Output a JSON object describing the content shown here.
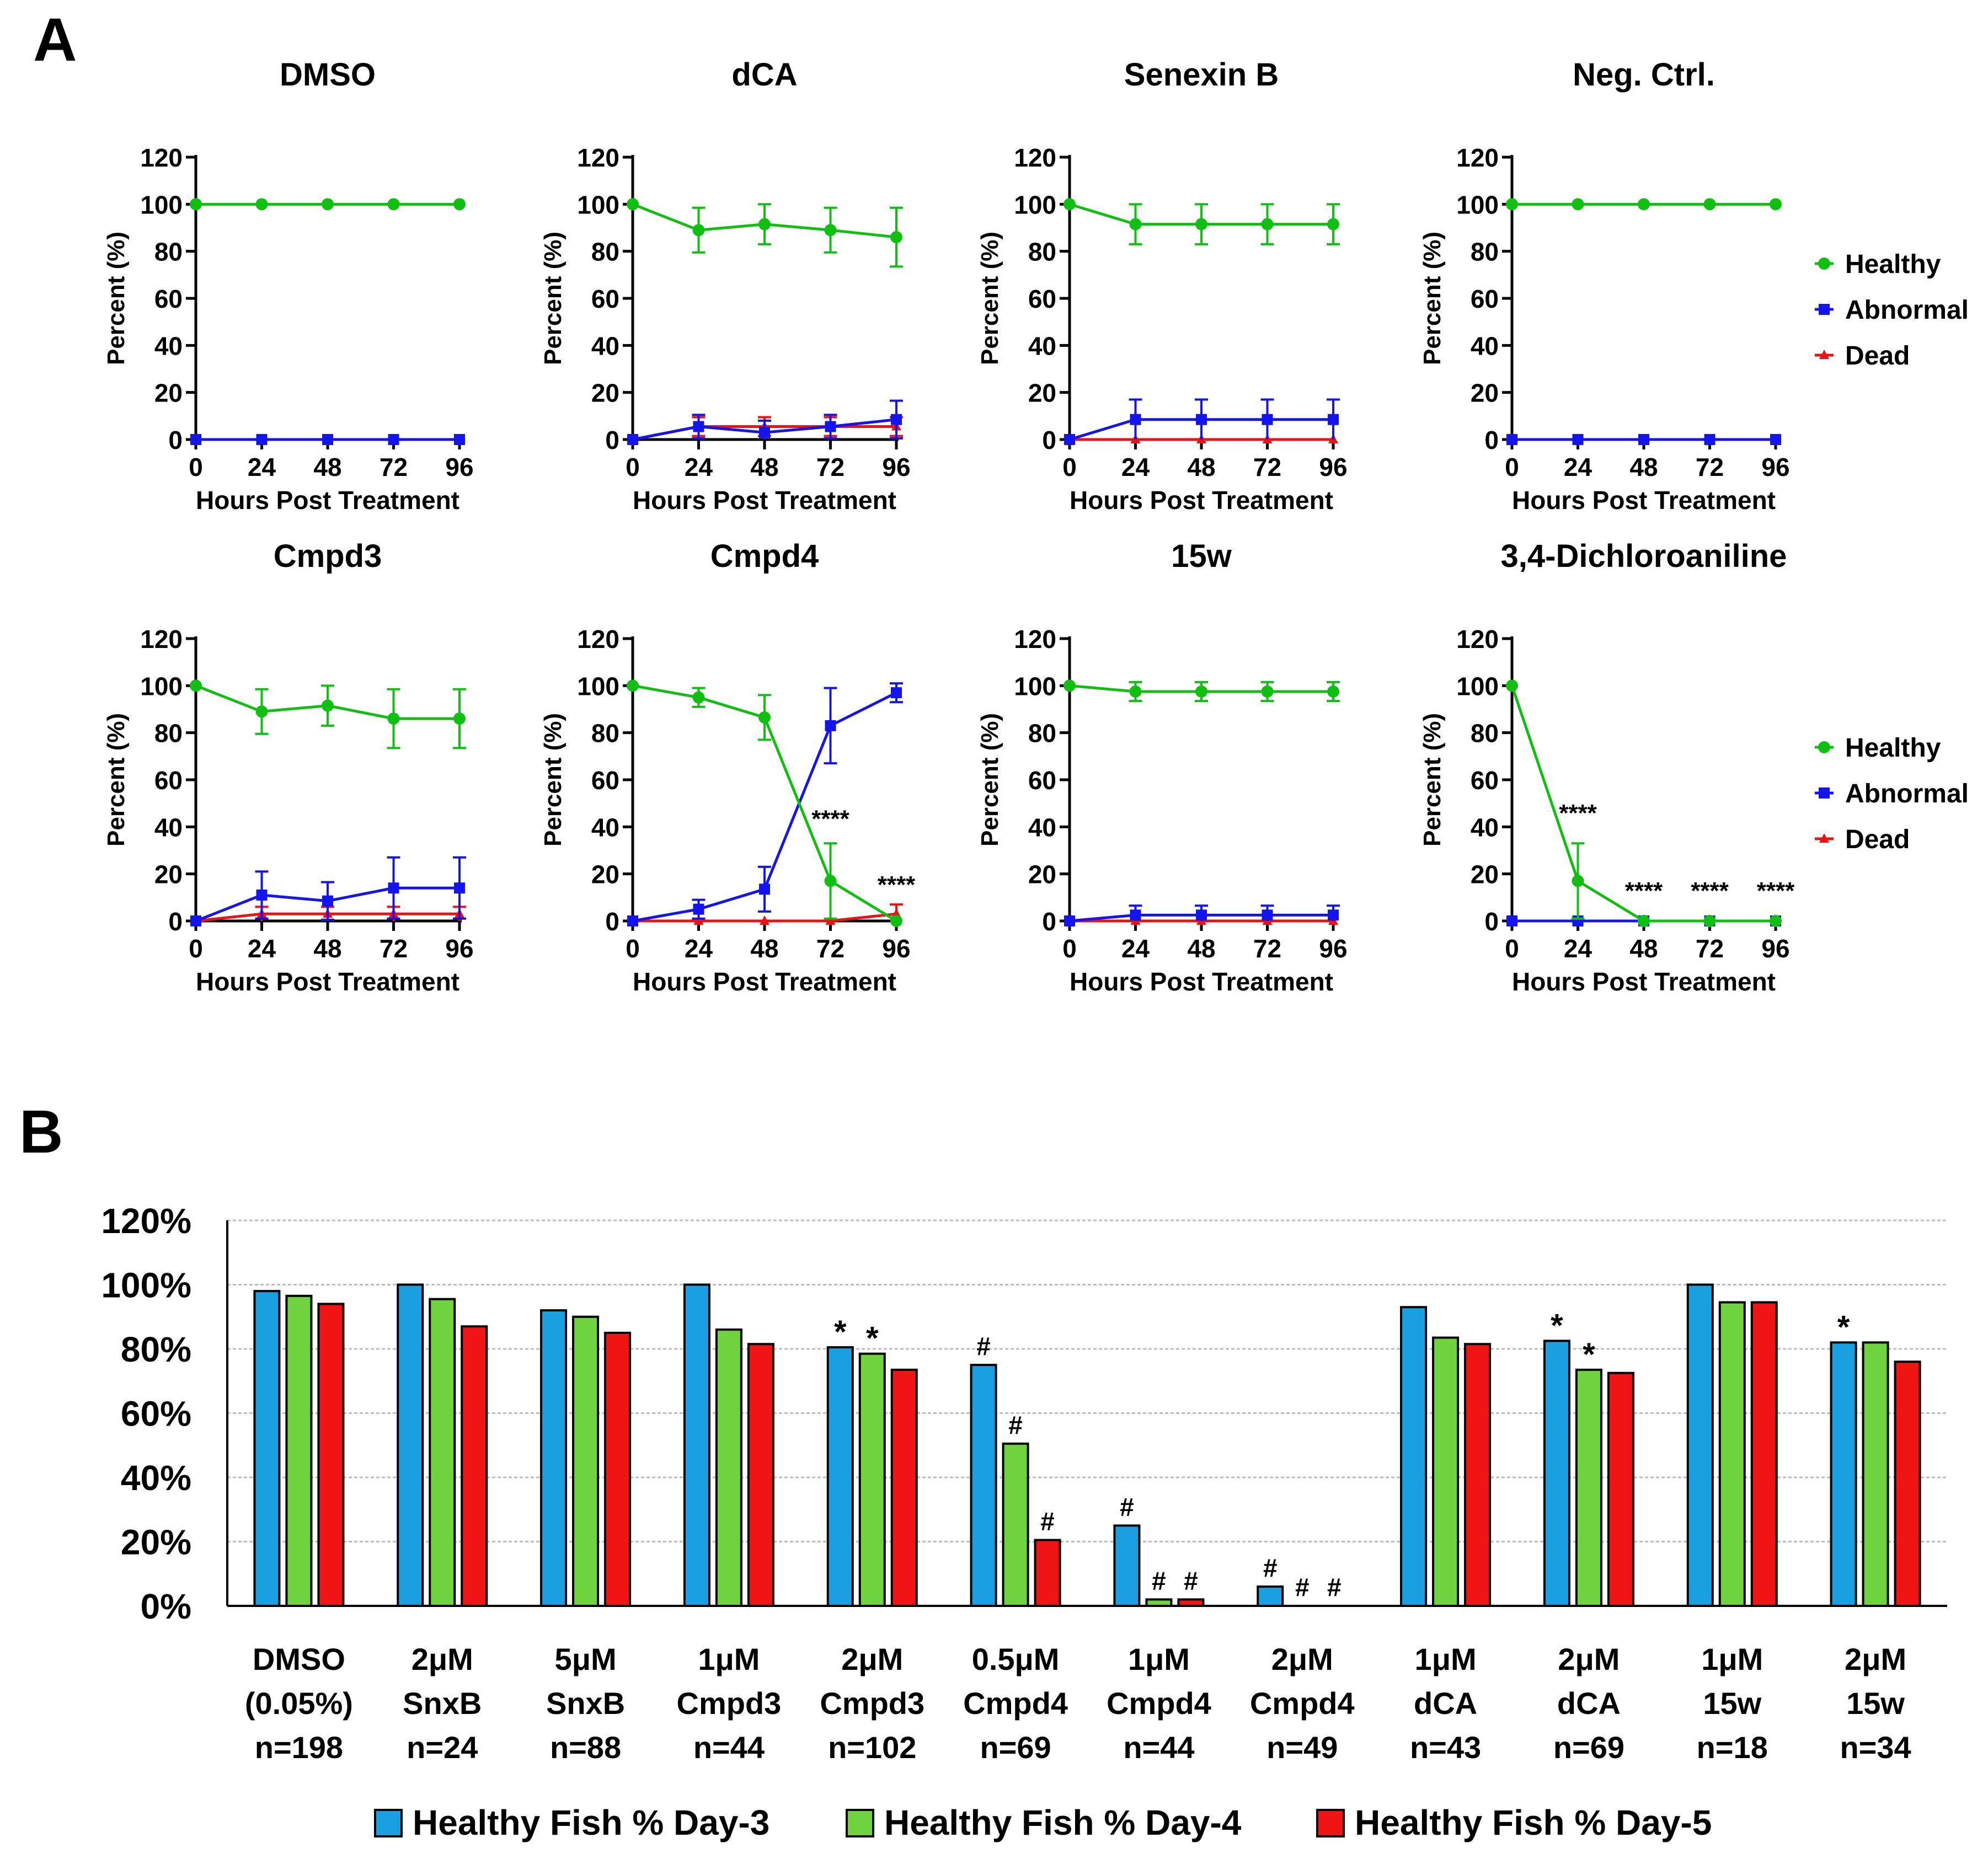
{
  "chart_data": {
    "panel_a": {
      "label": "A",
      "type": "line",
      "xlabel": "Hours Post Treatment",
      "ylabel": "Percent (%)",
      "x": [
        0,
        24,
        48,
        72,
        96
      ],
      "xticks": [
        "0",
        "24",
        "48",
        "72",
        "96"
      ],
      "yticks": [
        "0",
        "20",
        "40",
        "60",
        "80",
        "100",
        "120"
      ],
      "ylim": [
        0,
        120
      ],
      "legend": [
        {
          "name": "Healthy",
          "color": "#10c010",
          "marker": "circle"
        },
        {
          "name": "Abnormal",
          "color": "#1414ef",
          "marker": "square"
        },
        {
          "name": "Dead",
          "color": "#ee1111",
          "marker": "triangle"
        }
      ],
      "subplots": [
        {
          "title": "DMSO",
          "series": [
            {
              "name": "Healthy",
              "values": [
                100,
                100,
                100,
                100,
                100
              ],
              "err": [
                0,
                0,
                0,
                0,
                0
              ]
            },
            {
              "name": "Abnormal",
              "values": [
                0,
                0,
                0,
                0,
                0
              ],
              "err": [
                0,
                0,
                0,
                0,
                0
              ]
            },
            {
              "name": "Dead",
              "values": [
                0,
                0,
                0,
                0,
                0
              ],
              "err": [
                0,
                0,
                0,
                0,
                0
              ]
            }
          ],
          "annotations": [
            "",
            "",
            "",
            "",
            ""
          ]
        },
        {
          "title": "dCA",
          "series": [
            {
              "name": "Healthy",
              "values": [
                100,
                89,
                91.5,
                89,
                86
              ],
              "err": [
                0,
                9.5,
                8.5,
                9.5,
                12.5
              ]
            },
            {
              "name": "Abnormal",
              "values": [
                0,
                5.5,
                3,
                5.5,
                8.5
              ],
              "err": [
                0,
                5,
                5,
                5,
                8
              ]
            },
            {
              "name": "Dead",
              "values": [
                0,
                5.5,
                5.5,
                5.5,
                5.5
              ],
              "err": [
                0,
                4,
                4,
                4,
                4
              ]
            }
          ],
          "annotations": [
            "",
            "",
            "",
            "",
            ""
          ]
        },
        {
          "title": "Senexin B",
          "series": [
            {
              "name": "Healthy",
              "values": [
                100,
                91.5,
                91.5,
                91.5,
                91.5
              ],
              "err": [
                0,
                8.5,
                8.5,
                8.5,
                8.5
              ]
            },
            {
              "name": "Abnormal",
              "values": [
                0,
                8.5,
                8.5,
                8.5,
                8.5
              ],
              "err": [
                0,
                8.5,
                8.5,
                8.5,
                8.5
              ]
            },
            {
              "name": "Dead",
              "values": [
                0,
                0,
                0,
                0,
                0
              ],
              "err": [
                0,
                0,
                0,
                0,
                0
              ]
            }
          ],
          "annotations": [
            "",
            "",
            "",
            "",
            ""
          ]
        },
        {
          "title": "Neg. Ctrl.",
          "series": [
            {
              "name": "Healthy",
              "values": [
                100,
                100,
                100,
                100,
                100
              ],
              "err": [
                0,
                0,
                0,
                0,
                0
              ]
            },
            {
              "name": "Abnormal",
              "values": [
                0,
                0,
                0,
                0,
                0
              ],
              "err": [
                0,
                0,
                0,
                0,
                0
              ]
            },
            {
              "name": "Dead",
              "values": [
                0,
                0,
                0,
                0,
                0
              ],
              "err": [
                0,
                0,
                0,
                0,
                0
              ]
            }
          ],
          "annotations": [
            "",
            "",
            "",
            "",
            ""
          ]
        },
        {
          "title": "Cmpd3",
          "series": [
            {
              "name": "Healthy",
              "values": [
                100,
                89,
                91.5,
                86,
                86
              ],
              "err": [
                0,
                9.5,
                8.5,
                12.5,
                12.5
              ]
            },
            {
              "name": "Abnormal",
              "values": [
                0,
                11,
                8.5,
                14,
                14
              ],
              "err": [
                0,
                10,
                8,
                13,
                13
              ]
            },
            {
              "name": "Dead",
              "values": [
                0,
                3,
                3,
                3,
                3
              ],
              "err": [
                0,
                3,
                3,
                3,
                3
              ]
            }
          ],
          "annotations": [
            "",
            "",
            "",
            "",
            ""
          ]
        },
        {
          "title": "Cmpd4",
          "series": [
            {
              "name": "Healthy",
              "values": [
                100,
                95,
                86.5,
                17,
                0
              ],
              "err": [
                0,
                4,
                9.5,
                16,
                0
              ]
            },
            {
              "name": "Abnormal",
              "values": [
                0,
                5,
                13.5,
                83,
                97
              ],
              "err": [
                0,
                4,
                9.5,
                16,
                4
              ]
            },
            {
              "name": "Dead",
              "values": [
                0,
                0,
                0,
                0,
                3
              ],
              "err": [
                0,
                0,
                0,
                0,
                4
              ]
            }
          ],
          "annotations": [
            "",
            "",
            "",
            "****",
            "****"
          ]
        },
        {
          "title": "15w",
          "series": [
            {
              "name": "Healthy",
              "values": [
                100,
                97.5,
                97.5,
                97.5,
                97.5
              ],
              "err": [
                0,
                4,
                4,
                4,
                4
              ]
            },
            {
              "name": "Abnormal",
              "values": [
                0,
                2.5,
                2.5,
                2.5,
                2.5
              ],
              "err": [
                0,
                4,
                4,
                4,
                4
              ]
            },
            {
              "name": "Dead",
              "values": [
                0,
                0,
                0,
                0,
                0
              ],
              "err": [
                0,
                0,
                0,
                0,
                0
              ]
            }
          ],
          "annotations": [
            "",
            "",
            "",
            "",
            ""
          ]
        },
        {
          "title": "3,4-Dichloroaniline",
          "series": [
            {
              "name": "Healthy",
              "values": [
                100,
                17,
                0,
                0,
                0
              ],
              "err": [
                0,
                16,
                0,
                0,
                0
              ]
            },
            {
              "name": "Abnormal",
              "values": [
                0,
                0,
                0,
                0,
                0
              ],
              "err": [
                0,
                0,
                0,
                0,
                0
              ]
            },
            {
              "name": "Dead",
              "values": [
                0,
                0,
                0,
                0,
                0
              ],
              "err": [
                0,
                0,
                0,
                0,
                0
              ]
            }
          ],
          "annotations": [
            "",
            "****",
            "****",
            "****",
            "****"
          ]
        }
      ]
    },
    "panel_b": {
      "label": "B",
      "type": "bar",
      "ylim": [
        0,
        120
      ],
      "yticks": [
        "0%",
        "20%",
        "40%",
        "60%",
        "80%",
        "100%",
        "120%"
      ],
      "categories": [
        [
          "DMSO",
          "(0.05%)",
          "n=198"
        ],
        [
          "2μM",
          "SnxB",
          "n=24"
        ],
        [
          "5μM",
          "SnxB",
          "n=88"
        ],
        [
          "1μM",
          "Cmpd3",
          "n=44"
        ],
        [
          "2μM",
          "Cmpd3",
          "n=102"
        ],
        [
          "0.5μM",
          "Cmpd4",
          "n=69"
        ],
        [
          "1μM",
          "Cmpd4",
          "n=44"
        ],
        [
          "2μM",
          "Cmpd4",
          "n=49"
        ],
        [
          "1μM",
          "dCA",
          "n=43"
        ],
        [
          "2μM",
          "dCA",
          "n=69"
        ],
        [
          "1μM",
          "15w",
          "n=18"
        ],
        [
          "2μM",
          "15w",
          "n=34"
        ]
      ],
      "series": [
        {
          "name": "Healthy Fish % Day-3",
          "color": "#1a9fe0",
          "values": [
            98,
            100,
            92,
            100,
            80.5,
            75,
            25,
            6,
            93,
            82.5,
            100,
            82
          ],
          "marks": [
            "",
            "",
            "",
            "",
            "*",
            "#",
            "#",
            "#",
            "",
            "*",
            "",
            "*"
          ]
        },
        {
          "name": "Healthy Fish % Day-4",
          "color": "#6fd33f",
          "values": [
            96.5,
            95.5,
            90,
            86,
            78.5,
            50.5,
            2,
            0,
            83.5,
            73.5,
            94.5,
            82
          ],
          "marks": [
            "",
            "",
            "",
            "",
            "*",
            "#",
            "#",
            "#",
            "",
            "*",
            "",
            ""
          ]
        },
        {
          "name": "Healthy Fish % Day-5",
          "color": "#f01414",
          "values": [
            94,
            87,
            85,
            81.5,
            73.5,
            20.5,
            2,
            0,
            81.5,
            72.5,
            94.5,
            76
          ],
          "marks": [
            "",
            "",
            "",
            "",
            "",
            "#",
            "#",
            "#",
            "",
            "",
            "",
            ""
          ]
        }
      ]
    }
  }
}
